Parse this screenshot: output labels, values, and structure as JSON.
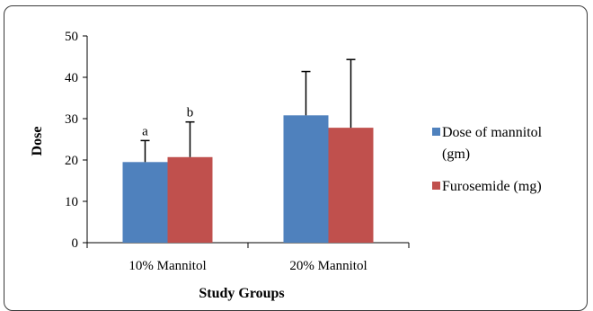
{
  "chart_data": {
    "type": "bar",
    "title": "",
    "xlabel": "Study Groups",
    "ylabel": "Dose",
    "ylim": [
      0,
      50
    ],
    "yticks": [
      0,
      10,
      20,
      30,
      40,
      50
    ],
    "grid": false,
    "legend_position": "right",
    "categories": [
      "10% Mannitol",
      "20% Mannitol"
    ],
    "series": [
      {
        "name": "Dose of mannitol (gm)",
        "color": "#4f81bd",
        "values": [
          19.5,
          30.8
        ],
        "error": [
          5.2,
          10.6
        ]
      },
      {
        "name": "Furosemide (mg)",
        "color": "#c0504d",
        "values": [
          20.7,
          27.8
        ],
        "error": [
          8.5,
          16.5
        ]
      }
    ],
    "annotations": [
      {
        "text": "a",
        "category": 0,
        "series": 0
      },
      {
        "text": "b",
        "category": 0,
        "series": 1
      }
    ]
  },
  "legend": {
    "items": [
      {
        "line1": "Dose of mannitol",
        "line2": "(gm)",
        "color": "#4f81bd"
      },
      {
        "line1": "Furosemide (mg)",
        "line2": "",
        "color": "#c0504d"
      }
    ]
  }
}
